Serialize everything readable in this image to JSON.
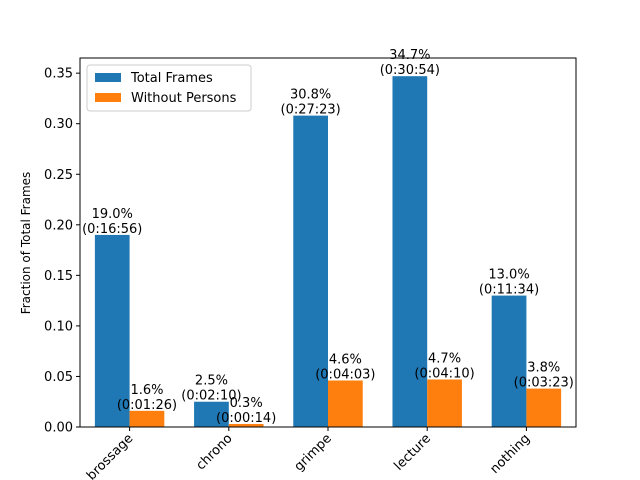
{
  "chart_data": {
    "type": "bar",
    "title": "",
    "xlabel": "",
    "ylabel": "Fraction of Total Frames",
    "ylim": [
      0,
      0.365
    ],
    "yticks": [
      0.0,
      0.05,
      0.1,
      0.15,
      0.2,
      0.25,
      0.3,
      0.35
    ],
    "ytick_labels": [
      "0.00",
      "0.05",
      "0.10",
      "0.15",
      "0.20",
      "0.25",
      "0.30",
      "0.35"
    ],
    "categories": [
      "brossage",
      "chrono",
      "grimpe",
      "lecture",
      "nothing"
    ],
    "grid": false,
    "legend_position": "top-left",
    "series": [
      {
        "name": "Total Frames",
        "color": "#1f77b4",
        "values": [
          0.19,
          0.025,
          0.308,
          0.347,
          0.13
        ],
        "labels": [
          [
            "19.0%",
            "(0:16:56)"
          ],
          [
            "2.5%",
            "(0:02:10)"
          ],
          [
            "30.8%",
            "(0:27:23)"
          ],
          [
            "34.7%",
            "(0:30:54)"
          ],
          [
            "13.0%",
            "(0:11:34)"
          ]
        ]
      },
      {
        "name": "Without Persons",
        "color": "#ff7f0e",
        "values": [
          0.016,
          0.003,
          0.046,
          0.047,
          0.038
        ],
        "labels": [
          [
            "1.6%",
            "(0:01:26)"
          ],
          [
            "0.3%",
            "(0:00:14)"
          ],
          [
            "4.6%",
            "(0:04:03)"
          ],
          [
            "4.7%",
            "(0:04:10)"
          ],
          [
            "3.8%",
            "(0:03:23)"
          ]
        ]
      }
    ]
  }
}
